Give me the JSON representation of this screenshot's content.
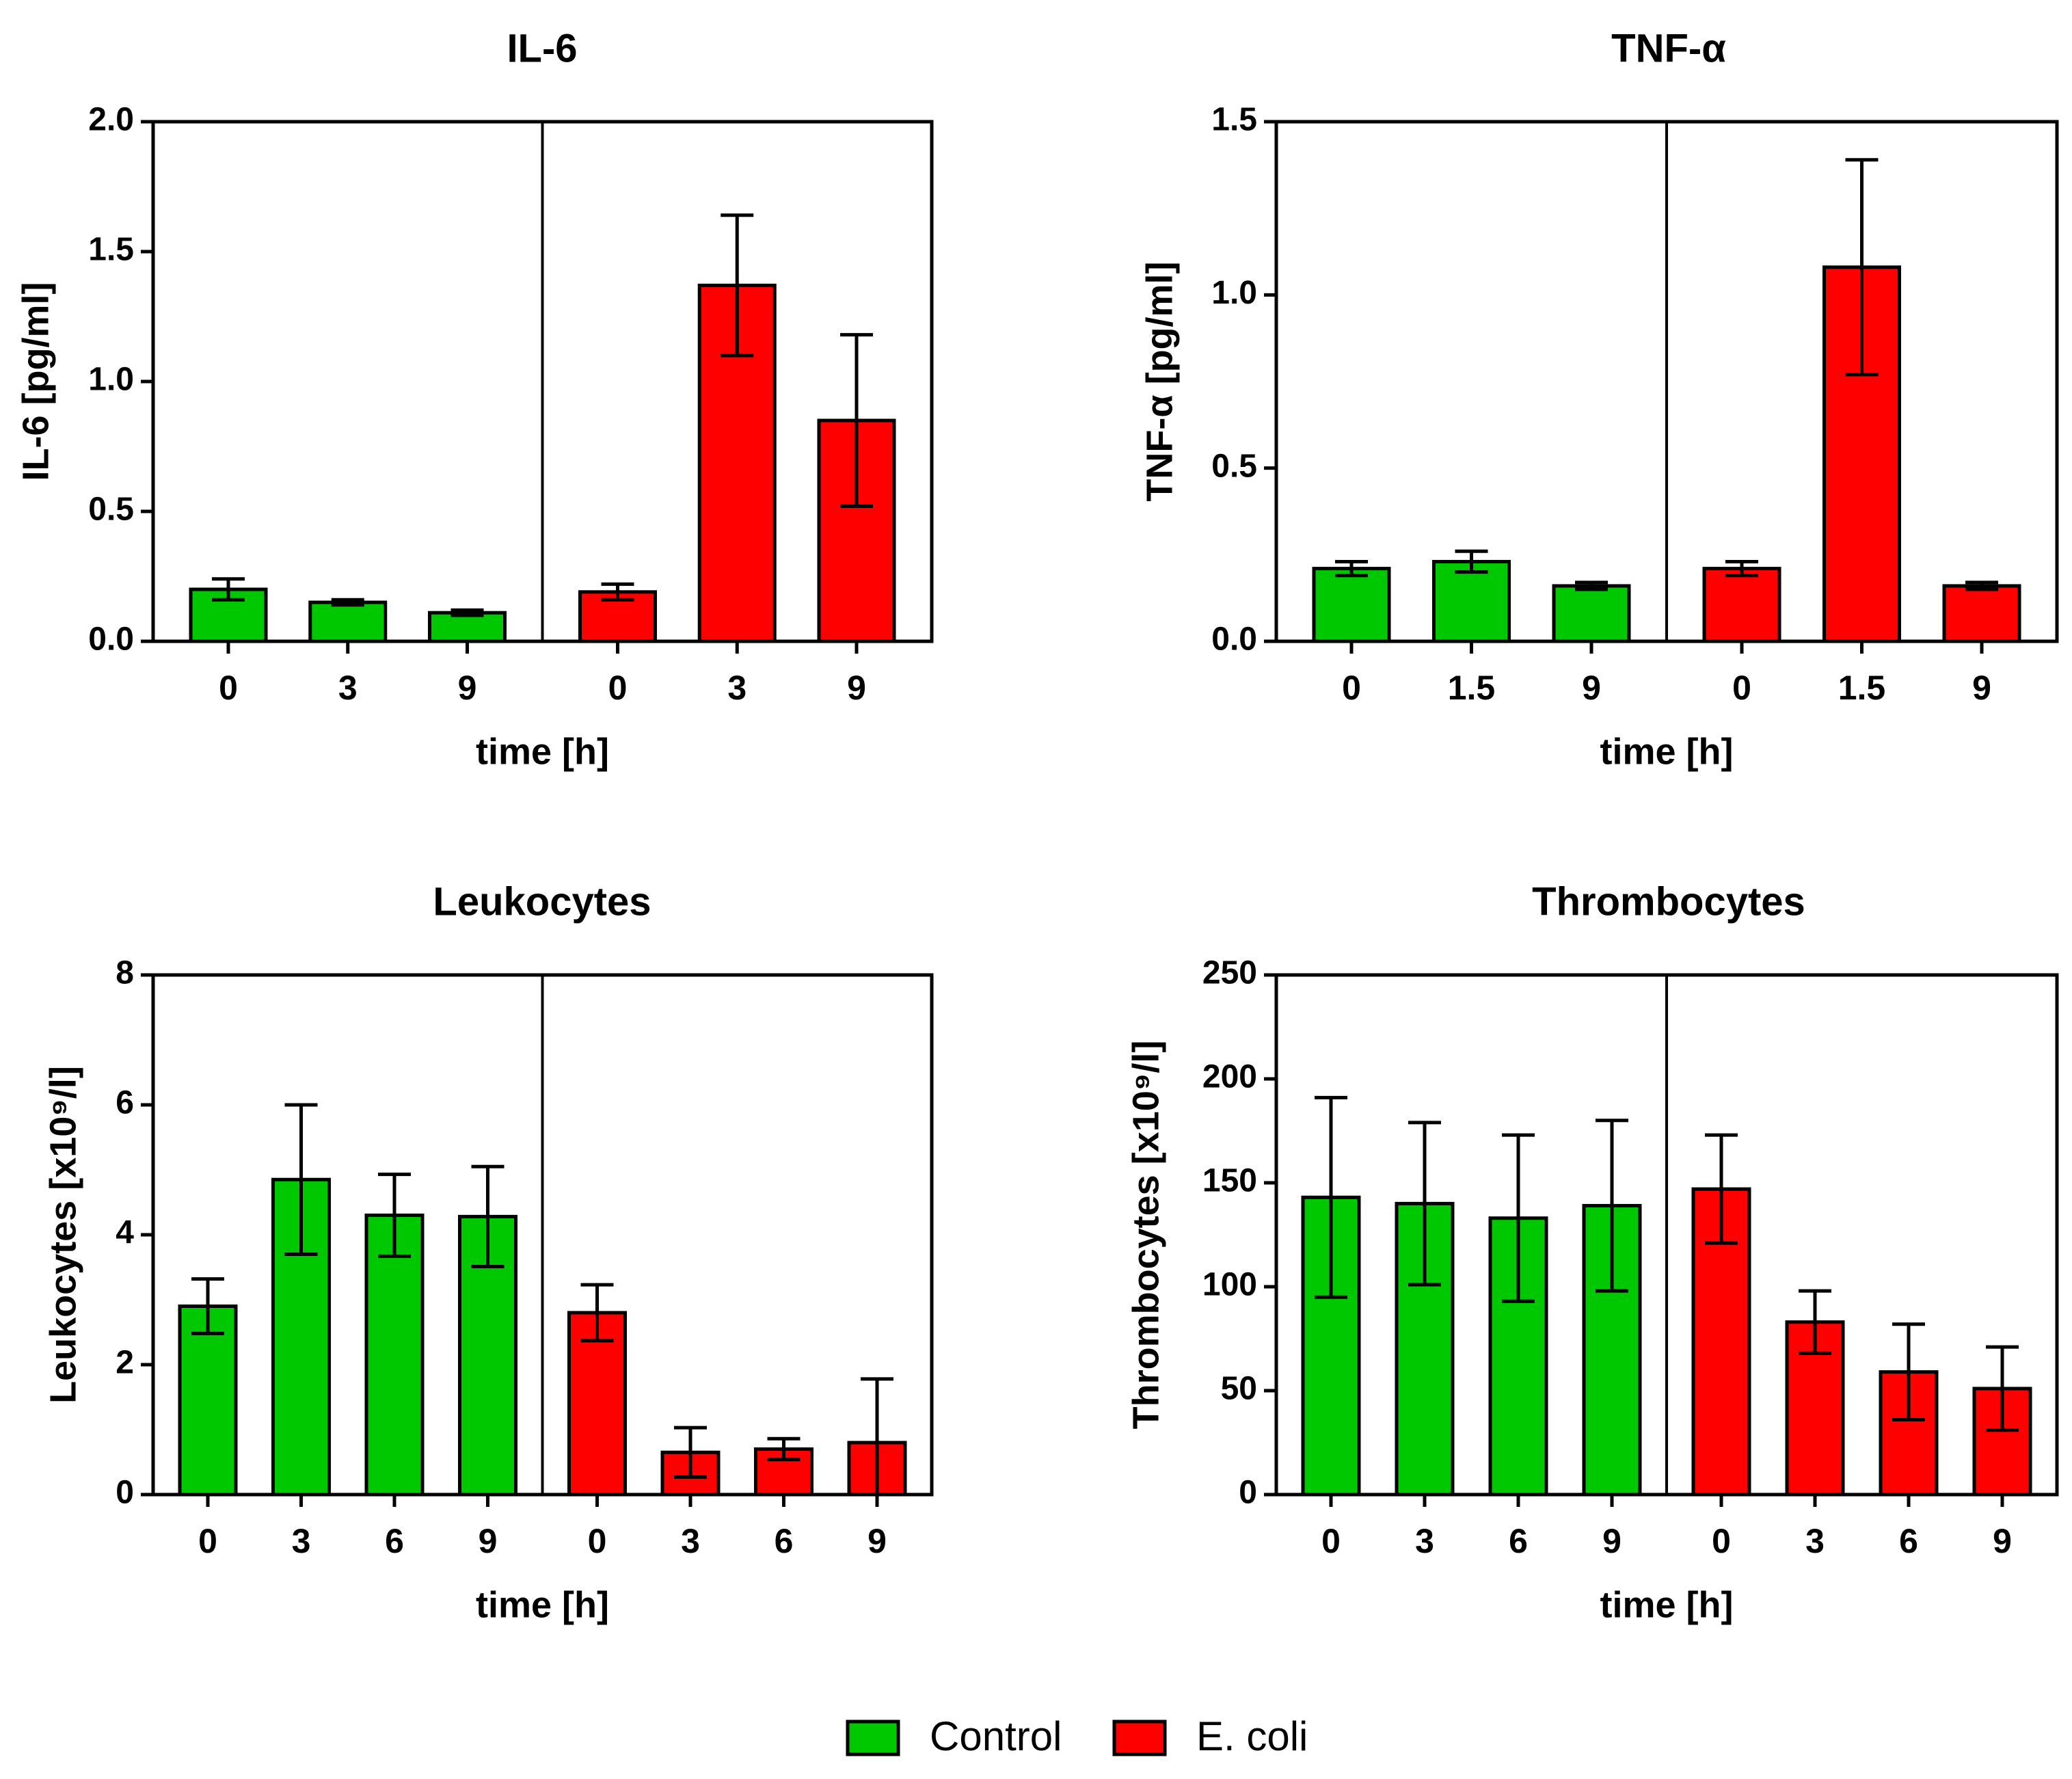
{
  "legend": {
    "items": [
      {
        "label": "Control",
        "color": "#00c800"
      },
      {
        "label": "E. coli",
        "color": "#ff0000"
      }
    ]
  },
  "chart_data": [
    {
      "type": "bar",
      "title": "IL-6",
      "ylabel": "IL-6 [pg/ml]",
      "xlabel": "time [h]",
      "ylim": [
        0,
        2.0
      ],
      "yticks": [
        "0.0",
        "0.5",
        "1.0",
        "1.5",
        "2.0"
      ],
      "ytick_values": [
        0,
        0.5,
        1.0,
        1.5,
        2.0
      ],
      "categories": [
        "0",
        "3",
        "9"
      ],
      "series": [
        {
          "name": "Control",
          "values": [
            0.2,
            0.15,
            0.11
          ],
          "errors": [
            0.04,
            0.01,
            0.01
          ]
        },
        {
          "name": "E. coli",
          "values": [
            0.19,
            1.37,
            0.85
          ],
          "errors": [
            0.03,
            0.27,
            0.33
          ]
        }
      ]
    },
    {
      "type": "bar",
      "title": "TNF-α",
      "ylabel": "TNF-α [pg/ml]",
      "xlabel": "time [h]",
      "ylim": [
        0,
        1.5
      ],
      "yticks": [
        "0.0",
        "0.5",
        "1.0",
        "1.5"
      ],
      "ytick_values": [
        0,
        0.5,
        1.0,
        1.5
      ],
      "categories": [
        "0",
        "1.5",
        "9"
      ],
      "series": [
        {
          "name": "Control",
          "values": [
            0.21,
            0.23,
            0.16
          ],
          "errors": [
            0.02,
            0.03,
            0.01
          ]
        },
        {
          "name": "E. coli",
          "values": [
            0.21,
            1.08,
            0.16
          ],
          "errors": [
            0.02,
            0.31,
            0.01
          ]
        }
      ]
    },
    {
      "type": "bar",
      "title": "Leukocytes",
      "ylabel": "Leukocytes [x10⁹/l]",
      "xlabel": "time [h]",
      "ylim": [
        0,
        8
      ],
      "yticks": [
        "0",
        "2",
        "4",
        "6",
        "8"
      ],
      "ytick_values": [
        0,
        2,
        4,
        6,
        8
      ],
      "categories": [
        "0",
        "3",
        "6",
        "9"
      ],
      "series": [
        {
          "name": "Control",
          "values": [
            2.9,
            4.85,
            4.3,
            4.28
          ],
          "errors": [
            0.42,
            1.15,
            0.63,
            0.77
          ]
        },
        {
          "name": "E. coli",
          "values": [
            2.8,
            0.65,
            0.7,
            0.8
          ],
          "errors": [
            0.43,
            0.38,
            0.16,
            0.98
          ]
        }
      ]
    },
    {
      "type": "bar",
      "title": "Thrombocytes",
      "ylabel": "Thrombocytes [x10⁹/l]",
      "xlabel": "time [h]",
      "ylim": [
        0,
        250
      ],
      "yticks": [
        "0",
        "50",
        "100",
        "150",
        "200",
        "250"
      ],
      "ytick_values": [
        0,
        50,
        100,
        150,
        200,
        250
      ],
      "categories": [
        "0",
        "3",
        "6",
        "9"
      ],
      "series": [
        {
          "name": "Control",
          "values": [
            143,
            140,
            133,
            139
          ],
          "errors": [
            48,
            39,
            40,
            41
          ]
        },
        {
          "name": "E. coli",
          "values": [
            147,
            83,
            59,
            51
          ],
          "errors": [
            26,
            15,
            23,
            20
          ]
        }
      ]
    }
  ]
}
